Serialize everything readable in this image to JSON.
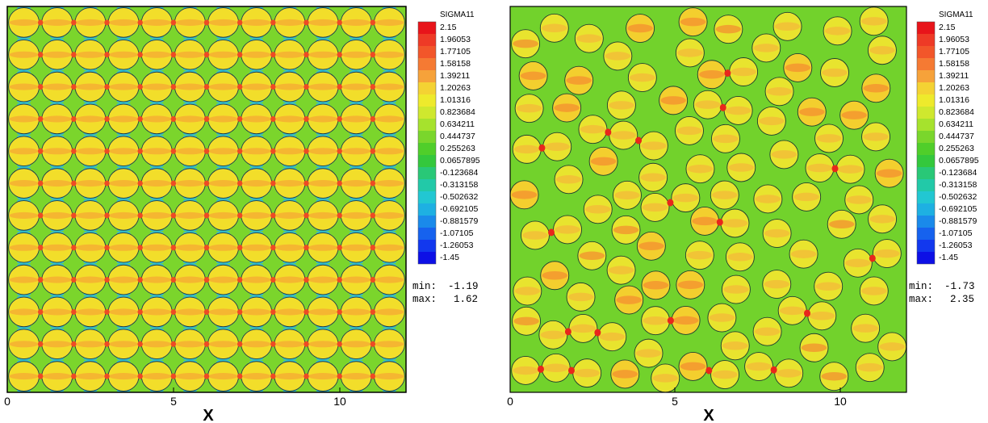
{
  "legend": {
    "title": "SIGMA11",
    "levels": [
      "2.15",
      "1.96053",
      "1.77105",
      "1.58158",
      "1.39211",
      "1.20263",
      "1.01316",
      "0.823684",
      "0.634211",
      "0.444737",
      "0.255263",
      "0.0657895",
      "-0.123684",
      "-0.313158",
      "-0.502632",
      "-0.692105",
      "-0.881579",
      "-1.07105",
      "-1.26053",
      "-1.45"
    ],
    "colors": [
      "#e8141a",
      "#ee3a26",
      "#f2562a",
      "#f57a33",
      "#f6a23a",
      "#f4d233",
      "#eeea2c",
      "#cfe82e",
      "#a6e22d",
      "#7ad62c",
      "#50ce2a",
      "#34c83c",
      "#29c877",
      "#22c9a8",
      "#22c7d2",
      "#1eb0e2",
      "#1a8aea",
      "#1662ee",
      "#1238ee",
      "#0d10e6"
    ]
  },
  "axis": {
    "x_label": "X",
    "x_ticks": [
      "0",
      "5",
      "10"
    ]
  },
  "panels": [
    {
      "name": "regular",
      "min_label": "min:",
      "min_value": "-1.19",
      "max_label": "max:",
      "max_value": "1.62"
    },
    {
      "name": "random",
      "min_label": "min:",
      "min_value": "-1.73",
      "max_label": "max:",
      "max_value": "2.35"
    }
  ]
}
